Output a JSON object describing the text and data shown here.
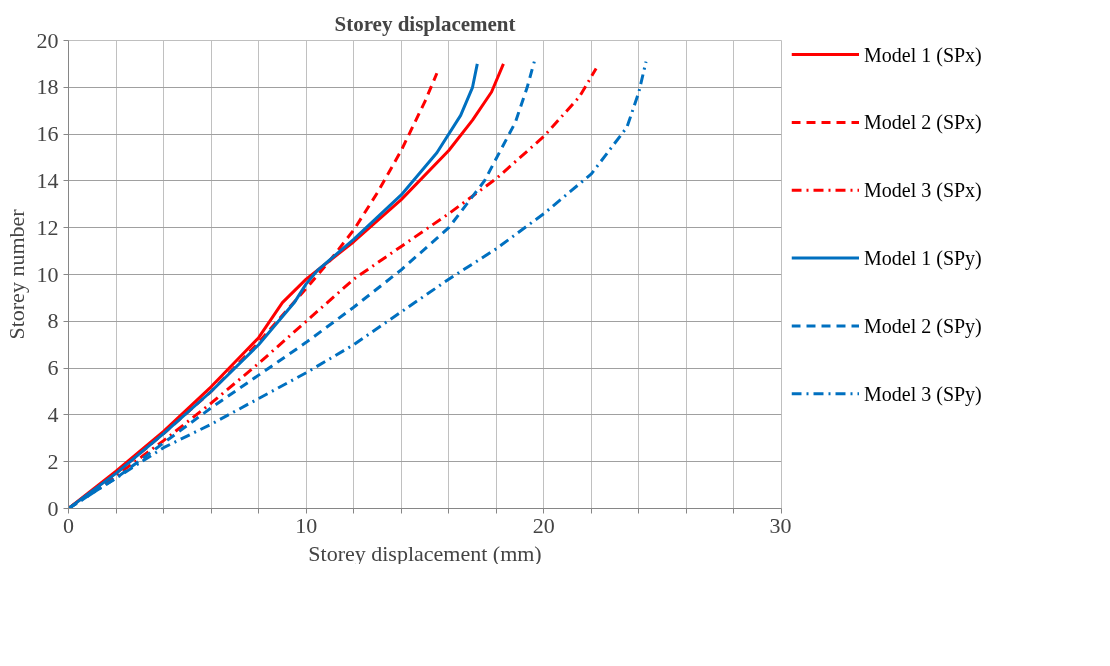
{
  "chart_data": {
    "type": "line",
    "title": "Storey displacement",
    "xlabel": "Storey displacement (mm)",
    "ylabel": "Storey number",
    "xlim": [
      0,
      30
    ],
    "ylim": [
      0,
      20
    ],
    "xticks": [
      0,
      {
        "value": 2,
        "label": null
      },
      {
        "value": 4,
        "label": null
      },
      {
        "value": 6,
        "label": null
      },
      {
        "value": 8,
        "label": null
      },
      10,
      {
        "value": 12,
        "label": null
      },
      {
        "value": 14,
        "label": null
      },
      {
        "value": 16,
        "label": null
      },
      {
        "value": 18,
        "label": null
      },
      20,
      {
        "value": 22,
        "label": null
      },
      {
        "value": 24,
        "label": null
      },
      {
        "value": 26,
        "label": null
      },
      {
        "value": 28,
        "label": null
      },
      30
    ],
    "yticks": [
      0,
      2,
      4,
      6,
      8,
      10,
      12,
      14,
      16,
      18,
      20
    ],
    "grid": true,
    "legend": "right",
    "series": [
      {
        "name": "Model 1 (SPx)",
        "color": "#ff0000",
        "line_style": "solid",
        "x": [
          0,
          2,
          4,
          6,
          8,
          9,
          10,
          11,
          12,
          14,
          16,
          17,
          17.8,
          18.3
        ],
        "values": [
          0,
          1.6,
          3.3,
          5.2,
          7.3,
          8.8,
          9.8,
          10.6,
          11.4,
          13.2,
          15.3,
          16.6,
          17.8,
          19
        ]
      },
      {
        "name": "Model 2 (SPx)",
        "color": "#ff0000",
        "line_style": "dashed",
        "x": [
          0,
          2,
          4,
          6,
          8,
          10,
          11,
          12,
          13,
          14,
          15,
          15.5
        ],
        "values": [
          0,
          1.5,
          3.2,
          5.0,
          7.1,
          9.4,
          10.6,
          11.9,
          13.5,
          15.3,
          17.4,
          18.6
        ]
      },
      {
        "name": "Model 3 (SPx)",
        "color": "#ff0000",
        "line_style": "dashdot",
        "x": [
          0,
          2,
          4,
          6,
          8,
          10,
          12,
          14,
          16,
          18,
          20,
          21.5,
          22.2
        ],
        "values": [
          0,
          1.4,
          2.9,
          4.5,
          6.2,
          8.0,
          9.8,
          11.2,
          12.6,
          14.1,
          15.9,
          17.6,
          18.8
        ]
      },
      {
        "name": "Model 1 (SPy)",
        "color": "#0070c0",
        "line_style": "solid",
        "x": [
          0,
          2,
          4,
          6,
          8,
          9.5,
          10,
          10.5,
          12,
          14,
          15.5,
          16.5,
          17,
          17.2
        ],
        "values": [
          0,
          1.5,
          3.2,
          5.0,
          7.0,
          8.8,
          9.6,
          10.2,
          11.5,
          13.4,
          15.2,
          16.8,
          18,
          19
        ]
      },
      {
        "name": "Model 2 (SPy)",
        "color": "#0070c0",
        "line_style": "dashed",
        "x": [
          0,
          2,
          4,
          6,
          8,
          10,
          12,
          14,
          16,
          17.5,
          18.8,
          19.3,
          19.6
        ],
        "values": [
          0,
          1.3,
          2.8,
          4.3,
          5.7,
          7.1,
          8.6,
          10.2,
          12.0,
          14.0,
          16.5,
          18,
          19.1
        ]
      },
      {
        "name": "Model 3 (SPy)",
        "color": "#0070c0",
        "line_style": "dashdot",
        "x": [
          0,
          2,
          4,
          6,
          8,
          10,
          12,
          14,
          16,
          18,
          20,
          22,
          23.5,
          24,
          24.3
        ],
        "values": [
          0,
          1.3,
          2.6,
          3.6,
          4.7,
          5.8,
          7.0,
          8.4,
          9.8,
          11.1,
          12.6,
          14.3,
          16.3,
          17.8,
          19.1
        ]
      }
    ]
  }
}
